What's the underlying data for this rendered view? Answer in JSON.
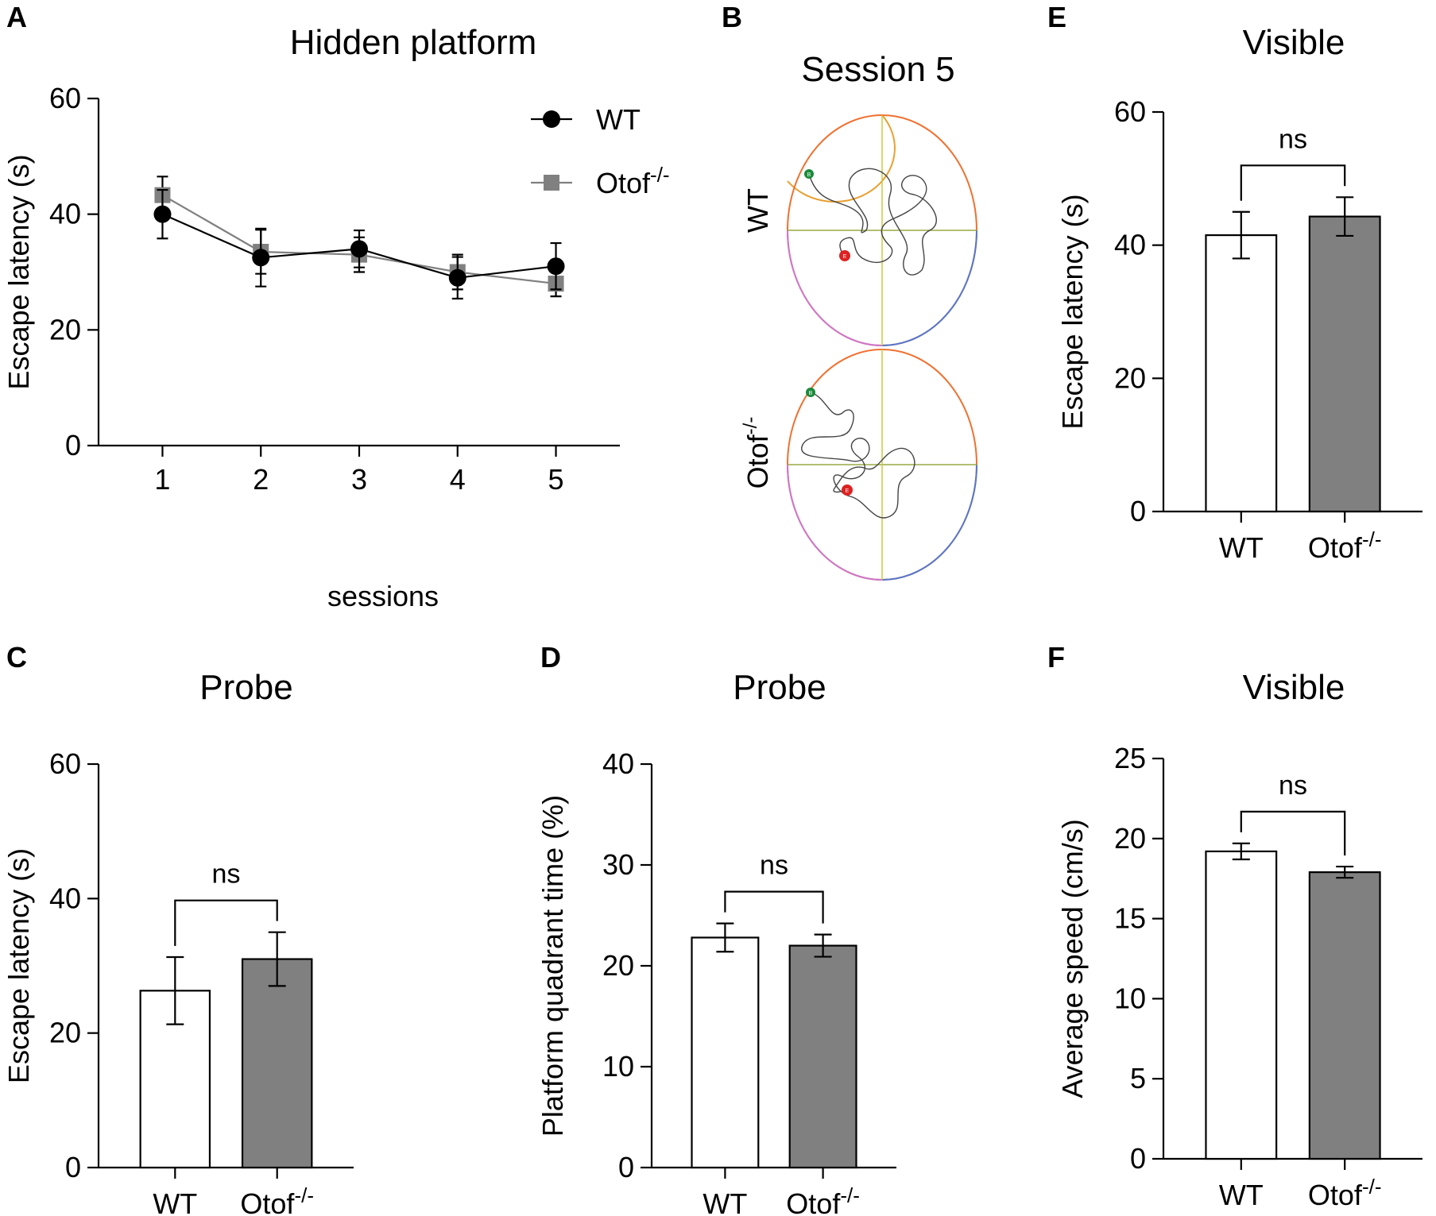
{
  "panel_labels": {
    "A": "A",
    "B": "B",
    "C": "C",
    "D": "D",
    "E": "E",
    "F": "F"
  },
  "maze": {
    "title": "Session 5",
    "rows": [
      {
        "label": "WT",
        "label_sup": "",
        "start_marker": "B",
        "end_marker": "E"
      },
      {
        "label": "Otof",
        "label_sup": "-/-",
        "start_marker": "B",
        "end_marker": "E"
      }
    ]
  },
  "colors": {
    "wt_line": "#000000",
    "otof_line": "#808080",
    "wt_bar": "#ffffff",
    "otof_bar": "#808080"
  },
  "chart_data": [
    {
      "id": "A",
      "type": "line",
      "title": "Hidden platform",
      "xlabel": "sessions",
      "ylabel": "Escape latency (s)",
      "x": [
        1,
        2,
        3,
        4,
        5
      ],
      "ylim": [
        0,
        60
      ],
      "yticks": [
        0,
        20,
        40,
        60
      ],
      "xticks": [
        1,
        2,
        3,
        4,
        5
      ],
      "legend_position": "top-right",
      "series": [
        {
          "name": "WT",
          "name_sup": "",
          "marker": "circle",
          "color": "#000000",
          "values": [
            40,
            32.5,
            34,
            29,
            31
          ],
          "err": [
            4.2,
            5,
            3.2,
            3.6,
            4
          ]
        },
        {
          "name": "Otof",
          "name_sup": "-/-",
          "marker": "square",
          "color": "#808080",
          "values": [
            43.3,
            33.5,
            33,
            30,
            28
          ],
          "err": [
            3.2,
            3.8,
            3,
            3,
            2.2
          ]
        }
      ]
    },
    {
      "id": "C",
      "type": "bar",
      "title": "Probe",
      "ylabel": "Escape latency (s)",
      "ylim": [
        0,
        60
      ],
      "yticks": [
        0,
        20,
        40,
        60
      ],
      "categories": [
        {
          "name": "WT",
          "sup": ""
        },
        {
          "name": "Otof",
          "sup": "-/-"
        }
      ],
      "values": [
        26.3,
        31
      ],
      "err": [
        5,
        4
      ],
      "significance": "ns"
    },
    {
      "id": "D",
      "type": "bar",
      "title": "Probe",
      "ylabel": "Platform quadrant time (%)",
      "ylim": [
        0,
        40
      ],
      "yticks": [
        0,
        10,
        20,
        30,
        40
      ],
      "categories": [
        {
          "name": "WT",
          "sup": ""
        },
        {
          "name": "Otof",
          "sup": "-/-"
        }
      ],
      "values": [
        22.8,
        22
      ],
      "err": [
        1.4,
        1.1
      ],
      "significance": "ns"
    },
    {
      "id": "E",
      "type": "bar",
      "title": "Visible",
      "ylabel": "Escape latency (s)",
      "ylim": [
        0,
        60
      ],
      "yticks": [
        0,
        20,
        40,
        60
      ],
      "categories": [
        {
          "name": "WT",
          "sup": ""
        },
        {
          "name": "Otof",
          "sup": "-/-"
        }
      ],
      "values": [
        41.5,
        44.3
      ],
      "err": [
        3.5,
        2.9
      ],
      "significance": "ns"
    },
    {
      "id": "F",
      "type": "bar",
      "title": "Visible",
      "ylabel": "Average speed (cm/s)",
      "ylim": [
        0,
        25
      ],
      "yticks": [
        0,
        5,
        10,
        15,
        20,
        25
      ],
      "categories": [
        {
          "name": "WT",
          "sup": ""
        },
        {
          "name": "Otof",
          "sup": "-/-"
        }
      ],
      "values": [
        19.2,
        17.9
      ],
      "err": [
        0.5,
        0.35
      ],
      "significance": "ns"
    }
  ]
}
